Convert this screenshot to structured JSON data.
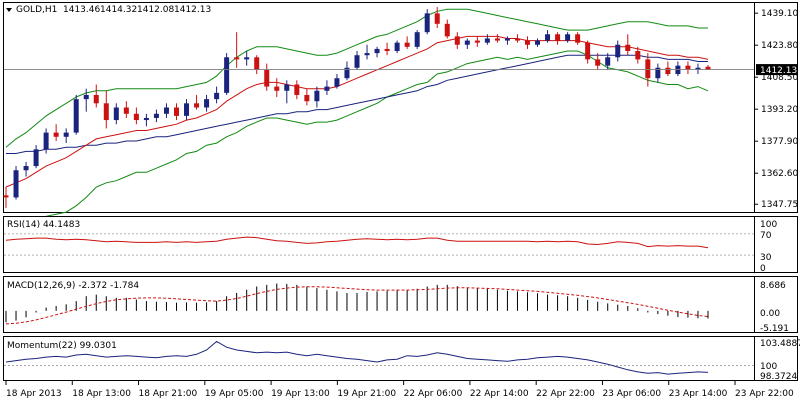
{
  "header": {
    "symbol_label": "GOLD,H1",
    "ohlc": [
      "1413.46",
      "1414.32",
      "1412.08",
      "1412.13"
    ],
    "current_price": "1412.13"
  },
  "colors": {
    "up_candle": "#1a237e",
    "down_candle": "#cc1111",
    "ma_fast": "#cc1111",
    "ma_slow": "#1a237e",
    "bollinger": "#138a13",
    "rsi_line": "#cc1111",
    "macd_hist": "#000000",
    "macd_signal": "#cc1111",
    "momentum_line": "#1a237e",
    "price_tag_bg": "#000000"
  },
  "price_scale": {
    "ticks": [
      "1439.10",
      "1423.80",
      "1408.50",
      "1393.20",
      "1377.90",
      "1362.60",
      "1347.75"
    ],
    "min": 1345,
    "max": 1443
  },
  "time_axis": {
    "labels": [
      "18 Apr 2013",
      "18 Apr 13:00",
      "18 Apr 21:00",
      "19 Apr 05:00",
      "19 Apr 13:00",
      "19 Apr 21:00",
      "22 Apr 06:00",
      "22 Apr 14:00",
      "22 Apr 22:00",
      "23 Apr 06:00",
      "23 Apr 14:00",
      "23 Apr 22:00"
    ]
  },
  "rsi": {
    "label": "RSI(14) 44.1483",
    "scale_labels": [
      "100",
      "70",
      "30",
      "0"
    ],
    "levels": [
      70,
      30
    ]
  },
  "macd": {
    "label": "MACD(12,26,9) -2.372 -1.784",
    "scale_labels": [
      "8.686",
      "0.00",
      "-5.191"
    ],
    "min": -6.2,
    "max": 9.8
  },
  "momentum": {
    "label": "Momentum(22) 99.0301",
    "scale_labels": [
      "103.4887",
      "100",
      "98.3724"
    ],
    "min": 98.1,
    "max": 103.9
  },
  "chart_data": {
    "type": "candlestick",
    "title": "GOLD,H1",
    "ylim": [
      1347.75,
      1439.1
    ],
    "candles": [
      {
        "o": 1352,
        "h": 1356,
        "l": 1346,
        "c": 1351
      },
      {
        "o": 1351,
        "h": 1366,
        "l": 1350,
        "c": 1364
      },
      {
        "o": 1364,
        "h": 1368,
        "l": 1361,
        "c": 1366
      },
      {
        "o": 1366,
        "h": 1376,
        "l": 1365,
        "c": 1374
      },
      {
        "o": 1374,
        "h": 1384,
        "l": 1372,
        "c": 1382
      },
      {
        "o": 1382,
        "h": 1386,
        "l": 1378,
        "c": 1380
      },
      {
        "o": 1380,
        "h": 1384,
        "l": 1377,
        "c": 1382
      },
      {
        "o": 1382,
        "h": 1400,
        "l": 1381,
        "c": 1398
      },
      {
        "o": 1398,
        "h": 1403,
        "l": 1392,
        "c": 1400
      },
      {
        "o": 1400,
        "h": 1405,
        "l": 1394,
        "c": 1396
      },
      {
        "o": 1396,
        "h": 1402,
        "l": 1384,
        "c": 1388
      },
      {
        "o": 1388,
        "h": 1396,
        "l": 1386,
        "c": 1394
      },
      {
        "o": 1394,
        "h": 1397,
        "l": 1389,
        "c": 1391
      },
      {
        "o": 1391,
        "h": 1394,
        "l": 1386,
        "c": 1388
      },
      {
        "o": 1388,
        "h": 1391,
        "l": 1385,
        "c": 1389
      },
      {
        "o": 1389,
        "h": 1393,
        "l": 1387,
        "c": 1391
      },
      {
        "o": 1391,
        "h": 1396,
        "l": 1389,
        "c": 1394
      },
      {
        "o": 1394,
        "h": 1396,
        "l": 1388,
        "c": 1390
      },
      {
        "o": 1390,
        "h": 1398,
        "l": 1388,
        "c": 1396
      },
      {
        "o": 1396,
        "h": 1400,
        "l": 1393,
        "c": 1394
      },
      {
        "o": 1394,
        "h": 1400,
        "l": 1392,
        "c": 1398
      },
      {
        "o": 1398,
        "h": 1404,
        "l": 1396,
        "c": 1401
      },
      {
        "o": 1401,
        "h": 1420,
        "l": 1400,
        "c": 1418
      },
      {
        "o": 1418,
        "h": 1430,
        "l": 1413,
        "c": 1417
      },
      {
        "o": 1417,
        "h": 1421,
        "l": 1414,
        "c": 1418
      },
      {
        "o": 1418,
        "h": 1419,
        "l": 1410,
        "c": 1412
      },
      {
        "o": 1412,
        "h": 1415,
        "l": 1402,
        "c": 1404
      },
      {
        "o": 1404,
        "h": 1408,
        "l": 1399,
        "c": 1402
      },
      {
        "o": 1402,
        "h": 1407,
        "l": 1396,
        "c": 1405
      },
      {
        "o": 1405,
        "h": 1407,
        "l": 1398,
        "c": 1400
      },
      {
        "o": 1400,
        "h": 1403,
        "l": 1395,
        "c": 1397
      },
      {
        "o": 1397,
        "h": 1404,
        "l": 1394,
        "c": 1402
      },
      {
        "o": 1402,
        "h": 1407,
        "l": 1400,
        "c": 1404
      },
      {
        "o": 1404,
        "h": 1410,
        "l": 1403,
        "c": 1408
      },
      {
        "o": 1408,
        "h": 1416,
        "l": 1407,
        "c": 1413
      },
      {
        "o": 1413,
        "h": 1421,
        "l": 1412,
        "c": 1419
      },
      {
        "o": 1419,
        "h": 1424,
        "l": 1417,
        "c": 1420
      },
      {
        "o": 1420,
        "h": 1423,
        "l": 1418,
        "c": 1422
      },
      {
        "o": 1422,
        "h": 1425,
        "l": 1419,
        "c": 1421
      },
      {
        "o": 1421,
        "h": 1426,
        "l": 1420,
        "c": 1425
      },
      {
        "o": 1425,
        "h": 1428,
        "l": 1422,
        "c": 1423
      },
      {
        "o": 1423,
        "h": 1431,
        "l": 1422,
        "c": 1430
      },
      {
        "o": 1430,
        "h": 1441,
        "l": 1429,
        "c": 1439
      },
      {
        "o": 1439,
        "h": 1442,
        "l": 1432,
        "c": 1434
      },
      {
        "o": 1434,
        "h": 1436,
        "l": 1427,
        "c": 1428
      },
      {
        "o": 1428,
        "h": 1430,
        "l": 1422,
        "c": 1424
      },
      {
        "o": 1424,
        "h": 1427,
        "l": 1422,
        "c": 1426
      },
      {
        "o": 1426,
        "h": 1428,
        "l": 1423,
        "c": 1425
      },
      {
        "o": 1425,
        "h": 1429,
        "l": 1424,
        "c": 1427
      },
      {
        "o": 1427,
        "h": 1429,
        "l": 1425,
        "c": 1426
      },
      {
        "o": 1426,
        "h": 1428,
        "l": 1424,
        "c": 1427
      },
      {
        "o": 1427,
        "h": 1429,
        "l": 1425,
        "c": 1426
      },
      {
        "o": 1426,
        "h": 1428,
        "l": 1422,
        "c": 1424
      },
      {
        "o": 1424,
        "h": 1427,
        "l": 1423,
        "c": 1426
      },
      {
        "o": 1426,
        "h": 1431,
        "l": 1425,
        "c": 1429
      },
      {
        "o": 1429,
        "h": 1430,
        "l": 1424,
        "c": 1426
      },
      {
        "o": 1426,
        "h": 1430,
        "l": 1425,
        "c": 1429
      },
      {
        "o": 1429,
        "h": 1430,
        "l": 1424,
        "c": 1425
      },
      {
        "o": 1425,
        "h": 1426,
        "l": 1415,
        "c": 1417
      },
      {
        "o": 1417,
        "h": 1420,
        "l": 1412,
        "c": 1414
      },
      {
        "o": 1414,
        "h": 1420,
        "l": 1412,
        "c": 1418
      },
      {
        "o": 1418,
        "h": 1426,
        "l": 1416,
        "c": 1424
      },
      {
        "o": 1424,
        "h": 1429,
        "l": 1419,
        "c": 1421
      },
      {
        "o": 1421,
        "h": 1423,
        "l": 1415,
        "c": 1417
      },
      {
        "o": 1417,
        "h": 1420,
        "l": 1404,
        "c": 1408
      },
      {
        "o": 1408,
        "h": 1415,
        "l": 1406,
        "c": 1413
      },
      {
        "o": 1413,
        "h": 1416,
        "l": 1409,
        "c": 1410
      },
      {
        "o": 1410,
        "h": 1416,
        "l": 1409,
        "c": 1414
      },
      {
        "o": 1414,
        "h": 1416,
        "l": 1410,
        "c": 1412
      },
      {
        "o": 1412,
        "h": 1415,
        "l": 1410,
        "c": 1413
      },
      {
        "o": 1413.46,
        "h": 1414.32,
        "l": 1412.08,
        "c": 1412.13
      }
    ],
    "ma_fast": [
      1356,
      1358,
      1360,
      1363,
      1366,
      1368,
      1370,
      1373,
      1376,
      1379,
      1380,
      1381,
      1382,
      1383,
      1383,
      1384,
      1385,
      1386,
      1388,
      1389,
      1391,
      1393,
      1397,
      1400,
      1403,
      1405,
      1406,
      1406,
      1405,
      1404,
      1403,
      1403,
      1403,
      1404,
      1406,
      1408,
      1410,
      1412,
      1414,
      1416,
      1418,
      1420,
      1422,
      1425,
      1426,
      1427,
      1428,
      1428,
      1428,
      1428,
      1427,
      1427,
      1426,
      1426,
      1426,
      1426,
      1426,
      1426,
      1425,
      1424,
      1423,
      1423,
      1423,
      1422,
      1421,
      1420,
      1419,
      1419,
      1418,
      1418,
      1417
    ],
    "ma_slow": [
      1372,
      1372,
      1373,
      1373,
      1374,
      1374,
      1375,
      1375,
      1376,
      1376,
      1377,
      1377,
      1378,
      1378,
      1379,
      1380,
      1380,
      1381,
      1382,
      1383,
      1384,
      1385,
      1386,
      1387,
      1388,
      1389,
      1390,
      1391,
      1391,
      1392,
      1392,
      1393,
      1393,
      1394,
      1395,
      1396,
      1397,
      1398,
      1399,
      1400,
      1401,
      1402,
      1404,
      1405,
      1407,
      1408,
      1409,
      1410,
      1411,
      1412,
      1413,
      1414,
      1415,
      1416,
      1417,
      1418,
      1419,
      1419,
      1419,
      1419,
      1419,
      1419,
      1419,
      1419,
      1418,
      1418,
      1417,
      1417,
      1417,
      1416,
      1416
    ],
    "bb_upper": [
      1375,
      1379,
      1382,
      1386,
      1390,
      1393,
      1396,
      1399,
      1401,
      1402,
      1402,
      1403,
      1403,
      1403,
      1403,
      1403,
      1403,
      1403,
      1404,
      1405,
      1406,
      1409,
      1414,
      1418,
      1421,
      1423,
      1423,
      1423,
      1422,
      1421,
      1420,
      1419,
      1419,
      1420,
      1422,
      1424,
      1426,
      1428,
      1429,
      1431,
      1433,
      1435,
      1438,
      1440,
      1441,
      1441,
      1441,
      1440,
      1439,
      1438,
      1437,
      1436,
      1435,
      1434,
      1433,
      1432,
      1431,
      1431,
      1431,
      1432,
      1433,
      1434,
      1435,
      1435,
      1435,
      1434,
      1433,
      1433,
      1433,
      1432,
      1432
    ],
    "bb_lower": [
      1337,
      1337,
      1338,
      1340,
      1342,
      1343,
      1344,
      1347,
      1351,
      1356,
      1358,
      1359,
      1361,
      1363,
      1363,
      1365,
      1367,
      1369,
      1372,
      1373,
      1376,
      1377,
      1380,
      1382,
      1385,
      1387,
      1389,
      1389,
      1388,
      1387,
      1386,
      1387,
      1387,
      1388,
      1390,
      1392,
      1394,
      1396,
      1399,
      1401,
      1403,
      1405,
      1406,
      1410,
      1411,
      1413,
      1415,
      1416,
      1417,
      1418,
      1417,
      1418,
      1417,
      1418,
      1419,
      1420,
      1421,
      1421,
      1419,
      1416,
      1413,
      1412,
      1411,
      1409,
      1407,
      1406,
      1405,
      1405,
      1403,
      1404,
      1402
    ],
    "rsi": [
      58,
      60,
      61,
      62,
      62,
      60,
      59,
      60,
      59,
      57,
      55,
      56,
      55,
      54,
      54,
      54,
      55,
      54,
      55,
      54,
      55,
      56,
      60,
      62,
      64,
      63,
      60,
      57,
      56,
      54,
      52,
      53,
      55,
      56,
      58,
      60,
      61,
      60,
      59,
      60,
      59,
      60,
      62,
      62,
      58,
      56,
      56,
      56,
      56,
      56,
      56,
      56,
      56,
      55,
      56,
      55,
      56,
      55,
      51,
      50,
      52,
      55,
      54,
      52,
      46,
      48,
      47,
      48,
      47,
      47,
      44
    ],
    "macd": [
      -3.5,
      -3.0,
      -2.0,
      -0.5,
      1.0,
      1.5,
      2.0,
      3.0,
      4.5,
      5.0,
      4.5,
      4.0,
      4.0,
      3.5,
      3.0,
      2.8,
      2.7,
      2.5,
      2.6,
      2.5,
      2.6,
      3.0,
      4.5,
      5.5,
      6.5,
      7.5,
      8.0,
      8.4,
      8.3,
      8.0,
      7.5,
      7.0,
      6.5,
      6.0,
      5.5,
      5.5,
      5.8,
      6.0,
      6.2,
      6.5,
      6.5,
      6.8,
      7.5,
      8.0,
      8.0,
      7.6,
      7.2,
      7.0,
      6.8,
      6.5,
      6.2,
      6.0,
      5.7,
      5.4,
      5.0,
      4.8,
      4.5,
      4.0,
      3.4,
      2.8,
      2.3,
      1.9,
      1.5,
      0.8,
      -0.5,
      -1.0,
      -1.5,
      -1.9,
      -2.1,
      -2.3,
      -2.372
    ],
    "macd_signal": [
      -4.0,
      -3.8,
      -3.4,
      -2.8,
      -2.0,
      -1.2,
      -0.4,
      0.5,
      1.4,
      2.2,
      2.9,
      3.4,
      3.7,
      3.9,
      4.0,
      4.0,
      3.9,
      3.7,
      3.5,
      3.3,
      3.1,
      3.0,
      3.3,
      3.8,
      4.5,
      5.3,
      6.0,
      6.6,
      7.0,
      7.3,
      7.4,
      7.4,
      7.3,
      7.1,
      6.9,
      6.7,
      6.5,
      6.4,
      6.4,
      6.4,
      6.4,
      6.5,
      6.6,
      6.8,
      7.0,
      7.1,
      7.1,
      7.0,
      6.9,
      6.8,
      6.6,
      6.4,
      6.2,
      6.0,
      5.7,
      5.4,
      5.1,
      4.8,
      4.4,
      4.0,
      3.5,
      3.0,
      2.5,
      2.0,
      1.4,
      0.8,
      0.2,
      -0.4,
      -0.9,
      -1.4,
      -1.784
    ],
    "momentum": [
      100.5,
      100.7,
      100.9,
      101.0,
      101.2,
      101.3,
      101.2,
      101.5,
      101.6,
      101.4,
      101.2,
      101.3,
      101.4,
      101.3,
      101.2,
      101.1,
      101.3,
      101.4,
      101.3,
      101.6,
      102.2,
      103.4,
      102.6,
      102.2,
      102.0,
      101.8,
      101.9,
      101.8,
      101.9,
      101.6,
      101.4,
      101.6,
      101.4,
      101.2,
      101.0,
      100.9,
      100.7,
      100.5,
      100.8,
      100.9,
      101.4,
      101.3,
      101.5,
      101.8,
      101.6,
      101.3,
      101.0,
      100.9,
      100.8,
      100.7,
      100.6,
      100.8,
      100.9,
      101.1,
      101.2,
      101.3,
      101.2,
      101.0,
      100.8,
      100.5,
      100.2,
      99.8,
      99.4,
      99.1,
      98.9,
      99.0,
      98.8,
      98.9,
      99.0,
      99.1,
      99.0301
    ]
  }
}
